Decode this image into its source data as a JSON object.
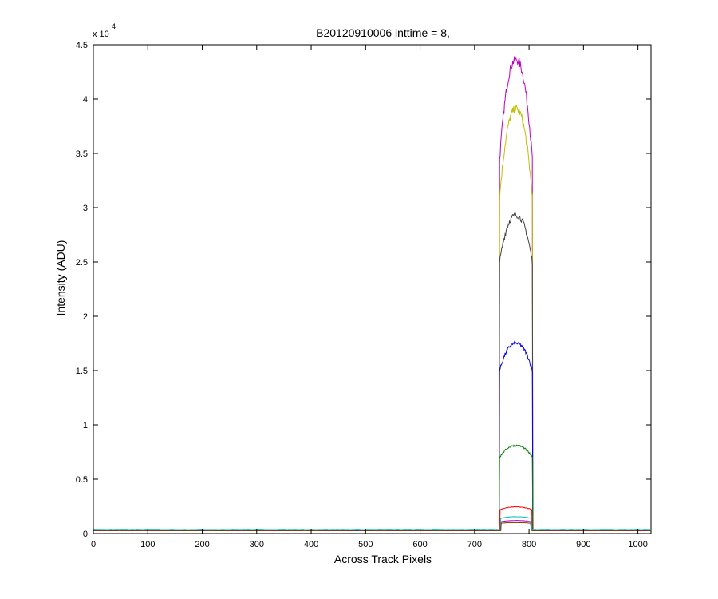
{
  "chart_data": {
    "type": "line",
    "title": "B20120910006 inttime = 8,",
    "xlabel": "Across Track Pixels",
    "ylabel": "Intensity (ADU)",
    "y_multiplier_label": "x 10",
    "y_multiplier_exponent": "4",
    "xlim": [
      0,
      1024
    ],
    "ylim": [
      0,
      4.5
    ],
    "x_ticks": [
      0,
      100,
      200,
      300,
      400,
      500,
      600,
      700,
      800,
      900,
      1000
    ],
    "x_tick_labels": [
      "0",
      "100",
      "200",
      "300",
      "400",
      "500",
      "600",
      "700",
      "800",
      "900",
      "1000"
    ],
    "y_ticks": [
      0,
      0.5,
      1,
      1.5,
      2,
      2.5,
      3,
      3.5,
      4,
      4.5
    ],
    "y_tick_labels": [
      "0",
      "0.5",
      "1",
      "1.5",
      "2",
      "2.5",
      "3",
      "3.5",
      "4",
      "4.5"
    ],
    "grid": false,
    "legend": "none",
    "series": [
      {
        "color": "#bf00bf",
        "baseline": 0.028,
        "peak": 4.36,
        "edge": 3.45,
        "x_start": 746,
        "x_end": 806
      },
      {
        "color": "#bfbf00",
        "baseline": 0.028,
        "peak": 3.91,
        "edge": 3.1,
        "x_start": 746,
        "x_end": 806
      },
      {
        "color": "#3f3f3f",
        "baseline": 0.028,
        "peak": 2.93,
        "edge": 2.5,
        "x_start": 746,
        "x_end": 806
      },
      {
        "color": "#0000ff",
        "baseline": 0.028,
        "peak": 1.75,
        "edge": 1.5,
        "x_start": 746,
        "x_end": 806
      },
      {
        "color": "#008000",
        "baseline": 0.028,
        "peak": 0.81,
        "edge": 0.7,
        "x_start": 746,
        "x_end": 806
      },
      {
        "color": "#ff0000",
        "baseline": 0.028,
        "peak": 0.245,
        "edge": 0.22,
        "x_start": 747,
        "x_end": 805
      },
      {
        "color": "#00bfbf",
        "baseline": 0.038,
        "peak": 0.155,
        "edge": 0.14,
        "x_start": 748,
        "x_end": 804
      },
      {
        "color": "#bf00bf",
        "baseline": 0.028,
        "peak": 0.12,
        "edge": 0.11,
        "x_start": 749,
        "x_end": 803
      },
      {
        "color": "#7f3f00",
        "baseline": 0.028,
        "peak": 0.1,
        "edge": 0.095,
        "x_start": 749,
        "x_end": 803
      }
    ]
  }
}
